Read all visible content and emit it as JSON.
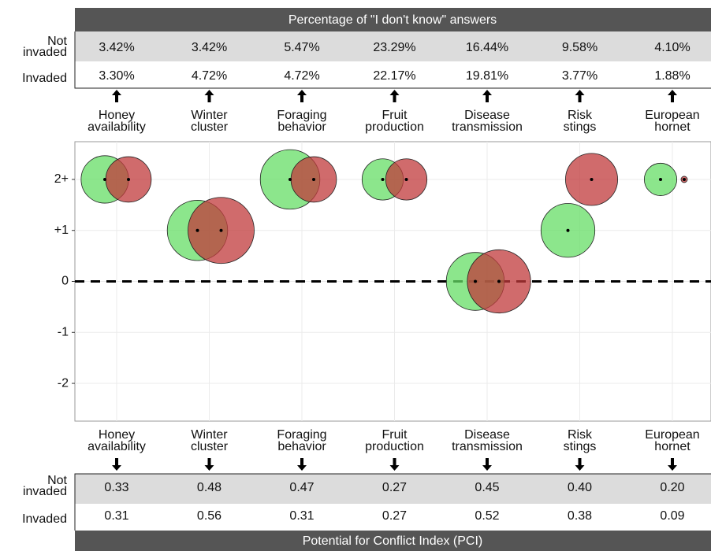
{
  "chart_data": {
    "type": "bubble",
    "title": "Percentage of \"I don't know\" answers",
    "subtitle": "Potential for Conflict Index (PCI)",
    "categories": [
      "Honey availability",
      "Winter cluster",
      "Foraging behavior",
      "Fruit production",
      "Disease transmission",
      "Risk stings",
      "European hornet"
    ],
    "series": [
      {
        "name": "Not invaded",
        "color": "#66dd66",
        "values": [
          2,
          1,
          2,
          2,
          0,
          1,
          2
        ],
        "sizes": [
          0.33,
          0.48,
          0.47,
          0.27,
          0.45,
          0.4,
          0.2
        ],
        "size_labels": [
          "0.33",
          "0.48",
          "0.47",
          "0.27",
          "0.45",
          "0.40",
          "0.20"
        ],
        "dont_know": [
          3.42,
          3.42,
          5.47,
          23.29,
          16.44,
          9.58,
          4.1
        ],
        "dont_know_labels": [
          "3.42%",
          "3.42%",
          "5.47%",
          "23.29%",
          "16.44%",
          "9.58%",
          "4.10%"
        ]
      },
      {
        "name": "Invaded",
        "color": "#c0393b",
        "values": [
          2,
          1,
          2,
          2,
          0,
          2,
          2
        ],
        "sizes": [
          0.31,
          0.56,
          0.31,
          0.27,
          0.52,
          0.38,
          0.09
        ],
        "size_labels": [
          "0.31",
          "0.56",
          "0.31",
          "0.27",
          "0.52",
          "0.38",
          "0.09"
        ],
        "dont_know": [
          3.3,
          4.72,
          4.72,
          22.17,
          19.81,
          3.77,
          1.88
        ],
        "dont_know_labels": [
          "3.30%",
          "4.72%",
          "4.72%",
          "22.17%",
          "19.81%",
          "3.77%",
          "1.88%"
        ]
      }
    ],
    "ylim": [
      -2.74,
      2.74
    ],
    "yticks": [
      -2,
      -1,
      0,
      {
        "value": 1,
        "label": "+1"
      },
      {
        "value": 2,
        "label": "2+"
      }
    ],
    "grid": true
  }
}
